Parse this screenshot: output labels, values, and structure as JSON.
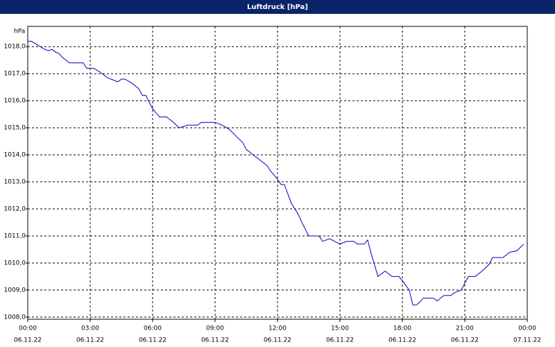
{
  "chart_data": {
    "type": "line",
    "title": "Luftdruck [hPa]",
    "y_label": "hPa",
    "x": [
      0,
      0.17,
      0.5,
      0.83,
      1,
      1.17,
      1.33,
      1.5,
      1.67,
      2,
      2.33,
      2.67,
      2.83,
      3.17,
      3.5,
      3.83,
      4,
      4.33,
      4.5,
      4.67,
      5,
      5.33,
      5.5,
      5.67,
      6,
      6.33,
      6.67,
      7,
      7.27,
      7.5,
      7.67,
      8.17,
      8.33,
      9,
      9.33,
      9.67,
      10,
      10.33,
      10.5,
      10.83,
      11.17,
      11.5,
      11.67,
      12,
      12.17,
      12.33,
      12.67,
      13,
      13.17,
      13.5,
      14,
      14.17,
      14.5,
      15,
      15.33,
      15.67,
      15.83,
      16.17,
      16.33,
      16.5,
      16.83,
      17.17,
      17.5,
      17.83,
      18,
      18.33,
      18.5,
      18.67,
      18.83,
      19,
      19.5,
      19.67,
      20,
      20.33,
      20.5,
      20.83,
      21,
      21.17,
      21.5,
      21.83,
      22.17,
      22.33,
      22.83,
      23.17,
      23.5,
      23.83
    ],
    "series": [
      {
        "color": "#0000c0",
        "values": [
          1018.2,
          1018.2,
          1018.05,
          1017.9,
          1017.85,
          1017.9,
          1017.8,
          1017.75,
          1017.6,
          1017.4,
          1017.4,
          1017.4,
          1017.2,
          1017.2,
          1017.05,
          1016.85,
          1016.8,
          1016.7,
          1016.8,
          1016.8,
          1016.65,
          1016.45,
          1016.2,
          1016.2,
          1015.7,
          1015.4,
          1015.4,
          1015.2,
          1015.0,
          1015.05,
          1015.1,
          1015.1,
          1015.2,
          1015.2,
          1015.1,
          1014.95,
          1014.7,
          1014.45,
          1014.2,
          1014.0,
          1013.8,
          1013.6,
          1013.4,
          1013.1,
          1012.9,
          1012.9,
          1012.2,
          1011.8,
          1011.5,
          1011.0,
          1011.0,
          1010.8,
          1010.9,
          1010.7,
          1010.8,
          1010.8,
          1010.7,
          1010.7,
          1010.85,
          1010.35,
          1009.5,
          1009.7,
          1009.5,
          1009.5,
          1009.35,
          1009.0,
          1008.45,
          1008.45,
          1008.55,
          1008.7,
          1008.7,
          1008.6,
          1008.8,
          1008.8,
          1008.9,
          1009.0,
          1009.25,
          1009.5,
          1009.5,
          1009.7,
          1009.95,
          1010.2,
          1010.2,
          1010.4,
          1010.45,
          1010.7
        ]
      }
    ],
    "xlim": [
      0,
      24
    ],
    "xticks": [
      {
        "value": 0,
        "label": "00:00",
        "date": "06.11.22"
      },
      {
        "value": 3,
        "label": "03:00",
        "date": "06.11.22"
      },
      {
        "value": 6,
        "label": "06:00",
        "date": "06.11.22"
      },
      {
        "value": 9,
        "label": "09:00",
        "date": "06.11.22"
      },
      {
        "value": 12,
        "label": "12:00",
        "date": "06.11.22"
      },
      {
        "value": 15,
        "label": "15:00",
        "date": "06.11.22"
      },
      {
        "value": 18,
        "label": "18:00",
        "date": "06.11.22"
      },
      {
        "value": 21,
        "label": "21:00",
        "date": "06.11.22"
      },
      {
        "value": 24,
        "label": "00:00",
        "date": "07.11.22"
      }
    ],
    "ylim": [
      1007.92,
      1018.75
    ],
    "yticks": [
      {
        "value": 1008,
        "label": "1008,0"
      },
      {
        "value": 1009,
        "label": "1009,0"
      },
      {
        "value": 1010,
        "label": "1010,0"
      },
      {
        "value": 1011,
        "label": "1011,0"
      },
      {
        "value": 1012,
        "label": "1012,0"
      },
      {
        "value": 1013,
        "label": "1013,0"
      },
      {
        "value": 1014,
        "label": "1014,0"
      },
      {
        "value": 1015,
        "label": "1015,0"
      },
      {
        "value": 1016,
        "label": "1016,0"
      },
      {
        "value": 1017,
        "label": "1017,0"
      },
      {
        "value": 1018,
        "label": "1018,0"
      }
    ],
    "grid": true
  }
}
